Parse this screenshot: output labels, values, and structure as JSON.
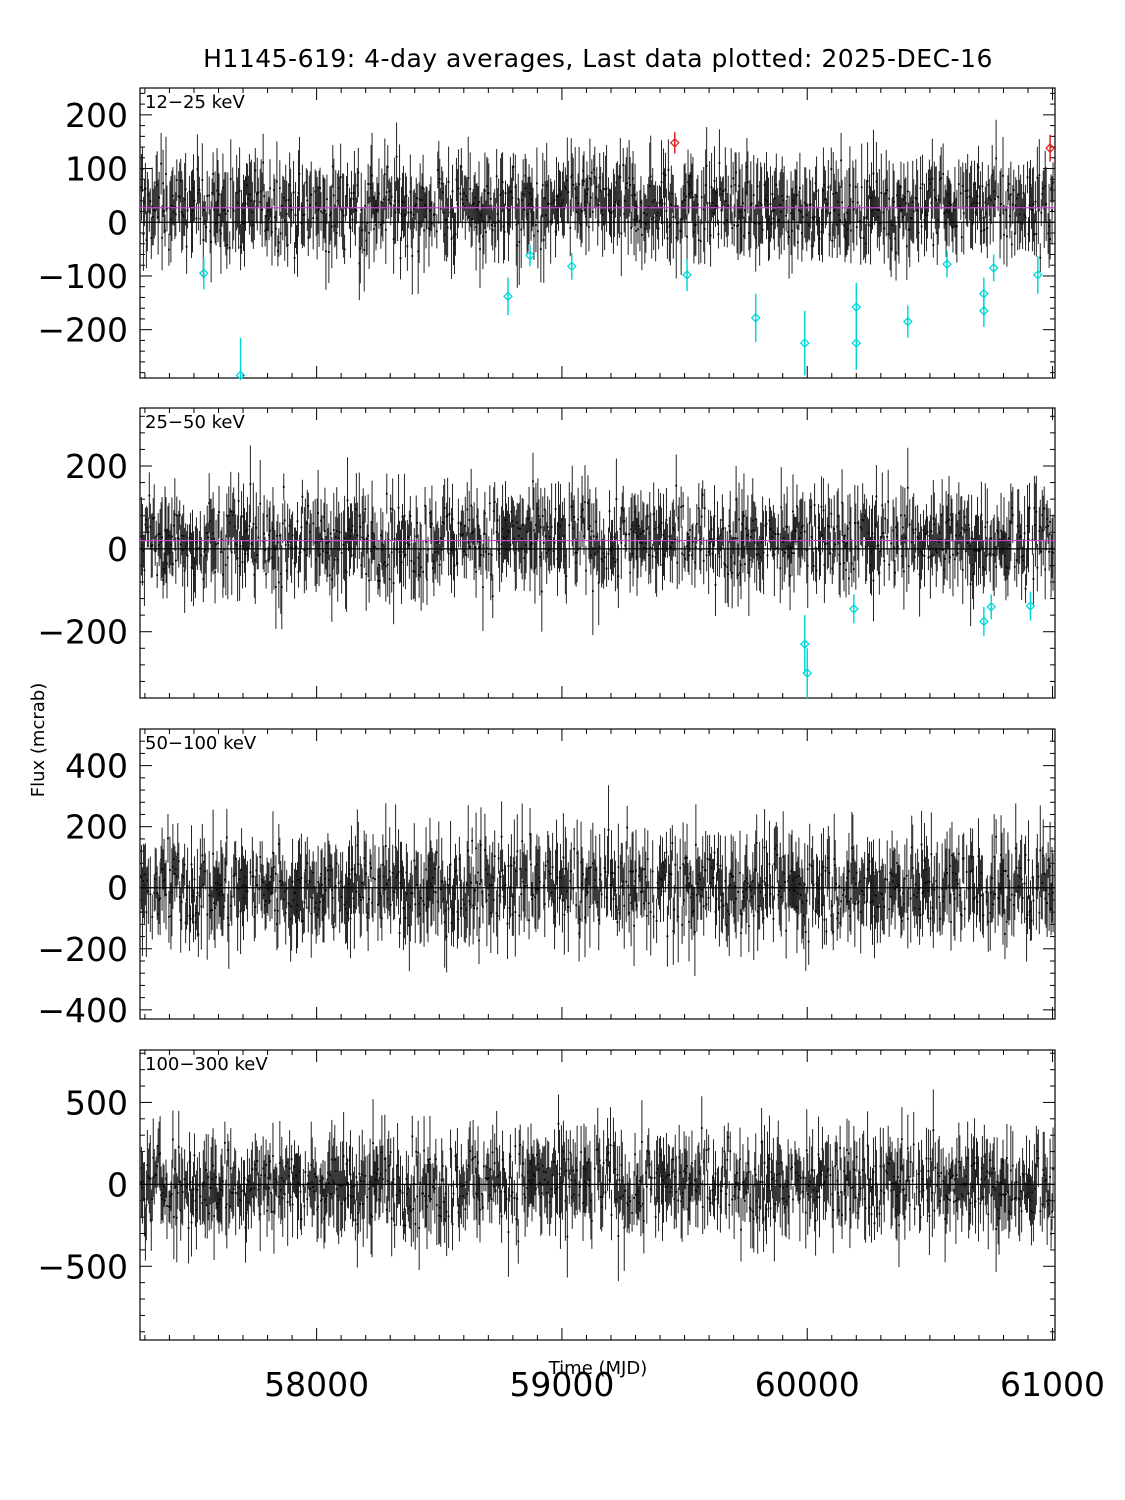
{
  "chart_data": {
    "type": "scatter",
    "title": "H1145-619:  4-day averages,  Last data plotted: 2025-DEC-16",
    "xlabel": "Time (MJD)",
    "ylabel": "Flux (mcrab)",
    "xlim": [
      57280,
      61010
    ],
    "x_ticks": [
      58000,
      59000,
      60000,
      61000
    ],
    "x_tick_labels": [
      "58000",
      "59000",
      "60000",
      "61000"
    ],
    "colors": {
      "data": "#000000",
      "zero_line": "#000000",
      "mean_line": "#cc44cc",
      "negative_outlier": "#00d8d8",
      "positive_outlier": "#dd2222"
    },
    "panels": [
      {
        "band": "12-25 keV",
        "band_label": "12−25 keV",
        "ylim": [
          -290,
          250
        ],
        "y_ticks": [
          -200,
          -100,
          0,
          100,
          200
        ],
        "y_tick_labels": [
          "−200",
          "−100",
          "0",
          "100",
          "200"
        ],
        "mean_flux": 27,
        "noise_amplitude": 65,
        "negative_outliers": [
          {
            "x": 57540,
            "y": -95,
            "err": 30
          },
          {
            "x": 57690,
            "y": -285,
            "err": 70
          },
          {
            "x": 58780,
            "y": -138,
            "err": 35
          },
          {
            "x": 58870,
            "y": -62,
            "err": 20
          },
          {
            "x": 59040,
            "y": -82,
            "err": 25
          },
          {
            "x": 59510,
            "y": -98,
            "err": 30
          },
          {
            "x": 59790,
            "y": -178,
            "err": 45
          },
          {
            "x": 59990,
            "y": -225,
            "err": 60
          },
          {
            "x": 60200,
            "y": -158,
            "err": 45
          },
          {
            "x": 60200,
            "y": -225,
            "err": 50
          },
          {
            "x": 60410,
            "y": -185,
            "err": 30
          },
          {
            "x": 60570,
            "y": -78,
            "err": 25
          },
          {
            "x": 60720,
            "y": -133,
            "err": 30
          },
          {
            "x": 60720,
            "y": -165,
            "err": 30
          },
          {
            "x": 60760,
            "y": -85,
            "err": 25
          },
          {
            "x": 60940,
            "y": -98,
            "err": 35
          }
        ],
        "positive_outliers": [
          {
            "x": 59460,
            "y": 148,
            "err": 20
          },
          {
            "x": 60990,
            "y": 138,
            "err": 25
          }
        ]
      },
      {
        "band": "25-50 keV",
        "band_label": "25−50 keV",
        "ylim": [
          -360,
          340
        ],
        "y_ticks": [
          -200,
          0,
          200
        ],
        "y_tick_labels": [
          "−200",
          "0",
          "200"
        ],
        "mean_flux": 20,
        "noise_amplitude": 85,
        "negative_outliers": [
          {
            "x": 59990,
            "y": -230,
            "err": 70
          },
          {
            "x": 60000,
            "y": -300,
            "err": 60
          },
          {
            "x": 60190,
            "y": -145,
            "err": 35
          },
          {
            "x": 60720,
            "y": -175,
            "err": 35
          },
          {
            "x": 60750,
            "y": -140,
            "err": 30
          },
          {
            "x": 60910,
            "y": -138,
            "err": 35
          }
        ],
        "positive_outliers": []
      },
      {
        "band": "50-100 keV",
        "band_label": "50−100 keV",
        "ylim": [
          -430,
          520
        ],
        "y_ticks": [
          -400,
          -200,
          0,
          200,
          400
        ],
        "y_tick_labels": [
          "−400",
          "−200",
          "0",
          "200",
          "400"
        ],
        "noise_amplitude": 120,
        "negative_outliers": [],
        "positive_outliers": []
      },
      {
        "band": "100-300 keV",
        "band_label": "100−300 keV",
        "ylim": [
          -950,
          820
        ],
        "y_ticks": [
          -500,
          0,
          500
        ],
        "y_tick_labels": [
          "−500",
          "0",
          "500"
        ],
        "noise_amplitude": 220,
        "negative_outliers": [],
        "positive_outliers": []
      }
    ]
  }
}
